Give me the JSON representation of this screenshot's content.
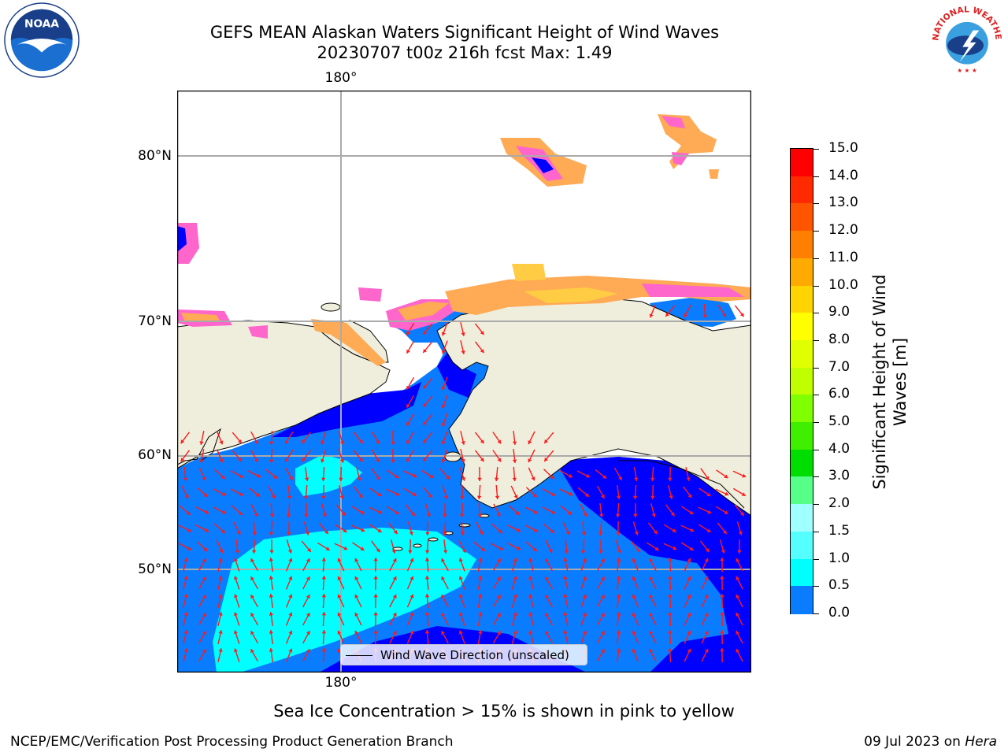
{
  "title": {
    "line1": "GEFS MEAN Alaskan Waters Significant Height of Wind Waves",
    "line2": "20230707 t00z 216h fcst   Max: 1.49"
  },
  "map": {
    "lon_labels": [
      "180°",
      "180°"
    ],
    "lat_labels": [
      "80°N",
      "70°N",
      "60°N",
      "50°N"
    ],
    "legend_label": "Wind Wave Direction (unscaled)",
    "land_color": "#efeedc",
    "ice_colors": [
      "#ff66cc",
      "#ffaa55",
      "#ffcc44"
    ],
    "wave_colors": [
      "#0000ff",
      "#0a7cff",
      "#00ffff"
    ]
  },
  "colorbar": {
    "label": "Significant Height of Wind Waves [m]",
    "ticks": [
      "15.0",
      "14.0",
      "13.0",
      "12.0",
      "11.0",
      "10.0",
      "9.0",
      "8.0",
      "7.0",
      "6.0",
      "5.0",
      "4.0",
      "3.0",
      "2.0",
      "1.5",
      "1.0",
      "0.5",
      "0.0"
    ],
    "colors": [
      "#ff0000",
      "#ff2a00",
      "#ff5500",
      "#ff8000",
      "#ffaa00",
      "#ffd400",
      "#ffff00",
      "#e0ff00",
      "#c0ff00",
      "#80ff00",
      "#40ee00",
      "#00dd00",
      "#55ff88",
      "#a0ffff",
      "#55ffff",
      "#00ffff",
      "#0a7cff",
      "#0000ff"
    ]
  },
  "ice_note": "Sea Ice Concentration > 15% is shown in pink to yellow",
  "footer": {
    "left": "NCEP/EMC/Verification Post Processing Product Generation Branch",
    "right_date": "09 Jul 2023 on ",
    "right_host": "Hera"
  },
  "logos": {
    "noaa_text": "NOAA",
    "nws_text": "NATIONAL WEATHER SERVICE"
  }
}
